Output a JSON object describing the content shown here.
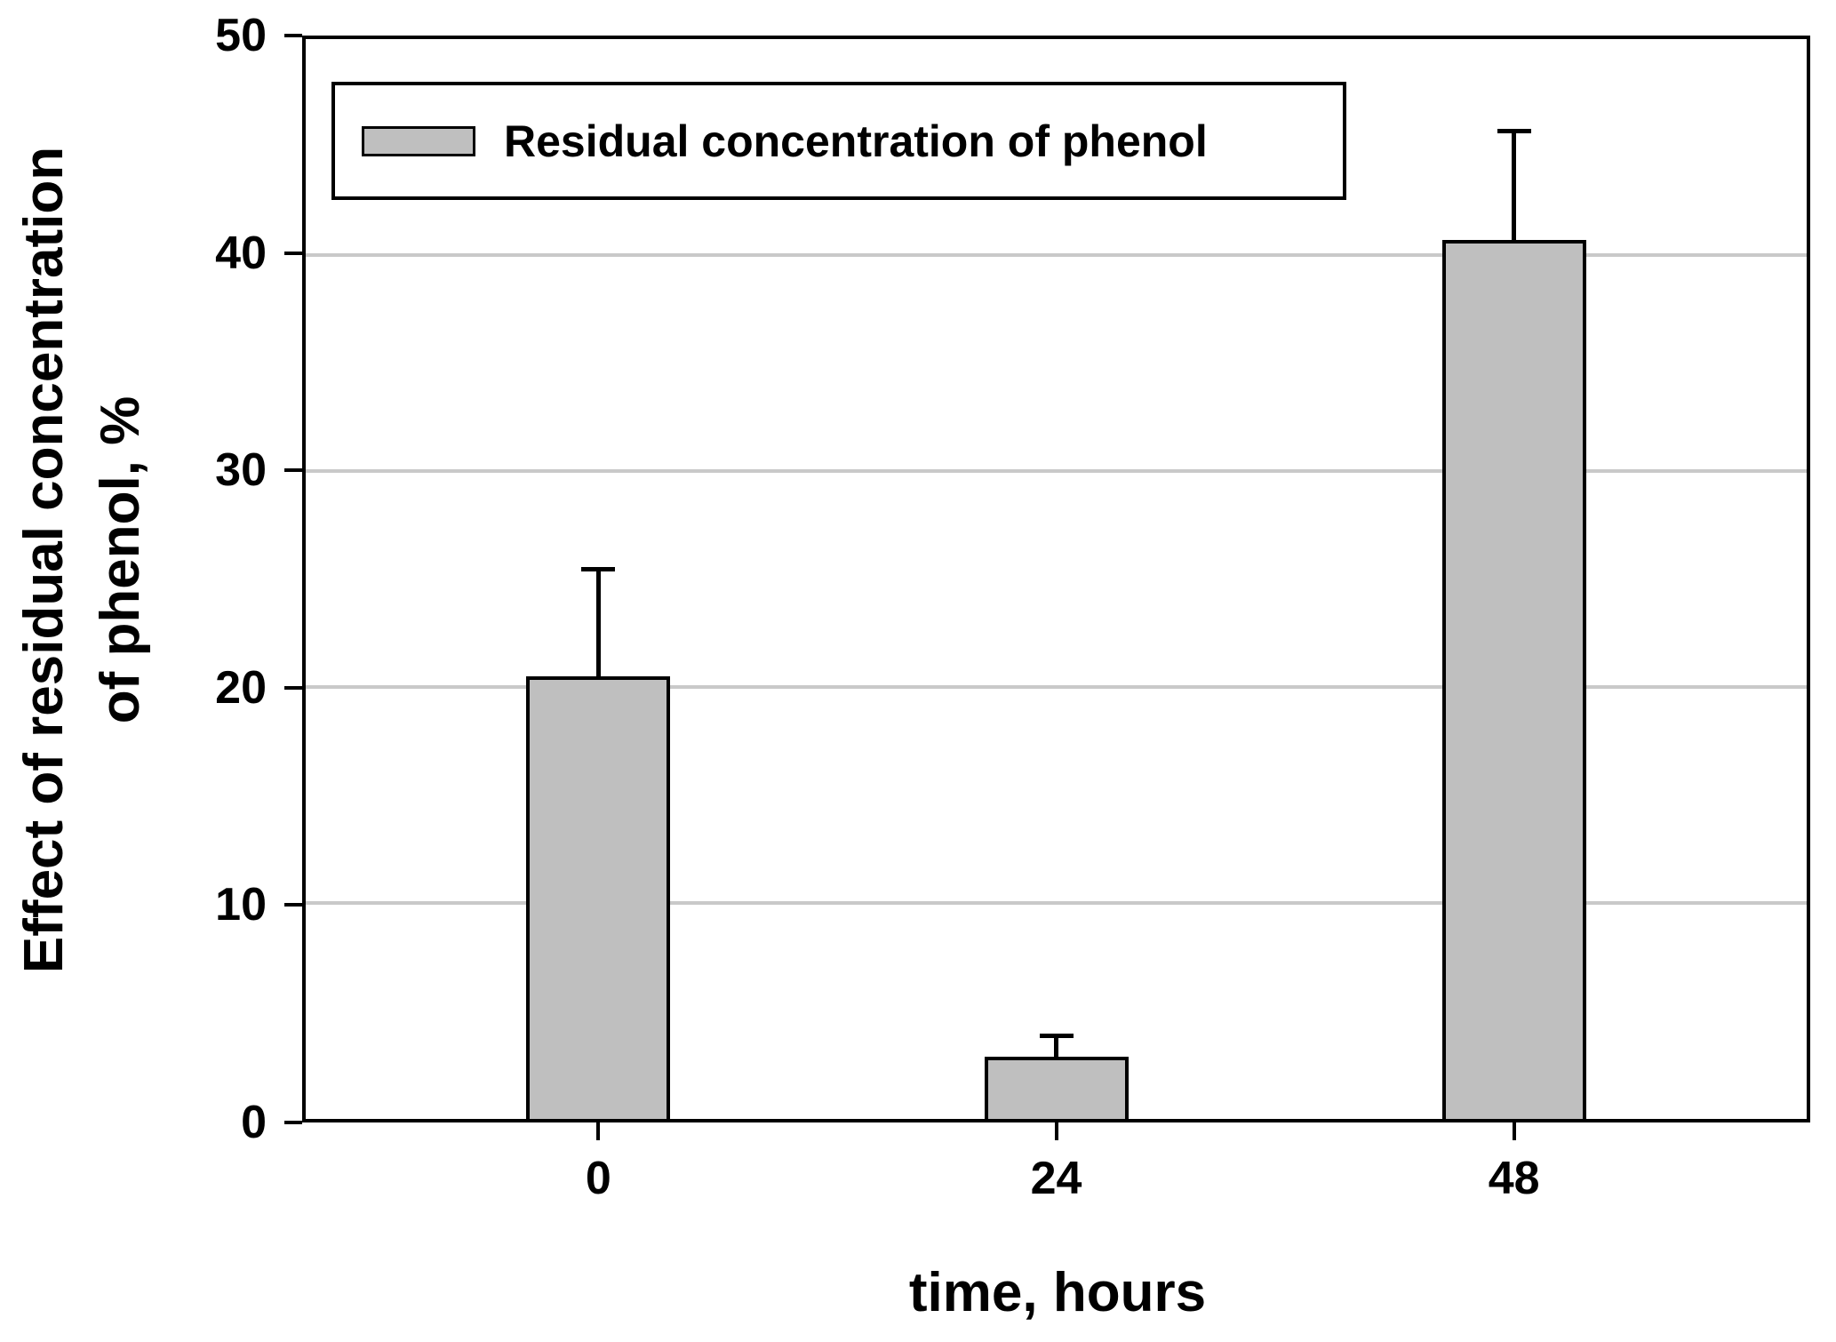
{
  "figure": {
    "legend": {
      "label": "Residual concentration of phenol"
    },
    "y_axis": {
      "title_line1": "Effect of residual concentration",
      "title_line2": "of phenol, %"
    },
    "x_axis": {
      "title": "time, hours"
    }
  },
  "colors": {
    "background": "#ffffff",
    "bar_fill": "#bfbfbf",
    "grid_line": "#c9c9c9",
    "axis": "#000000",
    "text": "#000000"
  },
  "chart_data": {
    "type": "bar",
    "categories": [
      "0",
      "24",
      "48"
    ],
    "series": [
      {
        "name": "Residual concentration of phenol",
        "values": [
          20.5,
          2.9,
          40.7
        ],
        "error_plus": [
          5.0,
          1.0,
          5.1
        ]
      }
    ],
    "title": "",
    "xlabel": "time, hours",
    "ylabel": "Effect of residual concentration of phenol, %",
    "ylim": [
      0,
      50
    ],
    "yticks": [
      0,
      10,
      20,
      30,
      40,
      50
    ],
    "grid": "horizontal",
    "legend_position": "top-left-inside",
    "error_direction": "plus-only"
  }
}
